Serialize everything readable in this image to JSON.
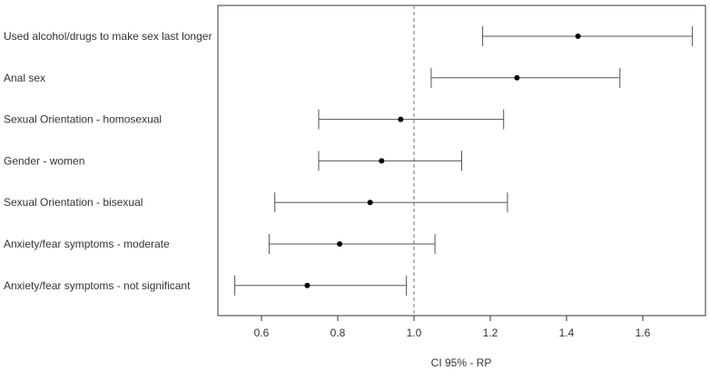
{
  "chart_data": {
    "type": "forest",
    "xlabel": "CI 95% - RP",
    "ylabel": "",
    "xlim": [
      0.5,
      1.75
    ],
    "xticks": [
      0.6,
      0.8,
      1.0,
      1.2,
      1.4,
      1.6
    ],
    "xtick_labels": [
      "0.6",
      "0.8",
      "1.0",
      "1.2",
      "1.4",
      "1.6"
    ],
    "reference_line": 1.0,
    "grid": false,
    "categories": [
      "Used alcohol/drugs to make sex last longer",
      "Anal sex",
      "Sexual Orientation - homosexual",
      "Gender - women",
      "Sexual Orientation - bisexual",
      "Anxiety/fear symptoms - moderate",
      "Anxiety/fear symptoms - not significant"
    ],
    "estimates": [
      1.43,
      1.27,
      0.965,
      0.915,
      0.885,
      0.805,
      0.72
    ],
    "lower": [
      1.18,
      1.045,
      0.75,
      0.75,
      0.635,
      0.62,
      0.53
    ],
    "upper": [
      1.73,
      1.54,
      1.235,
      1.125,
      1.245,
      1.055,
      0.98
    ]
  }
}
